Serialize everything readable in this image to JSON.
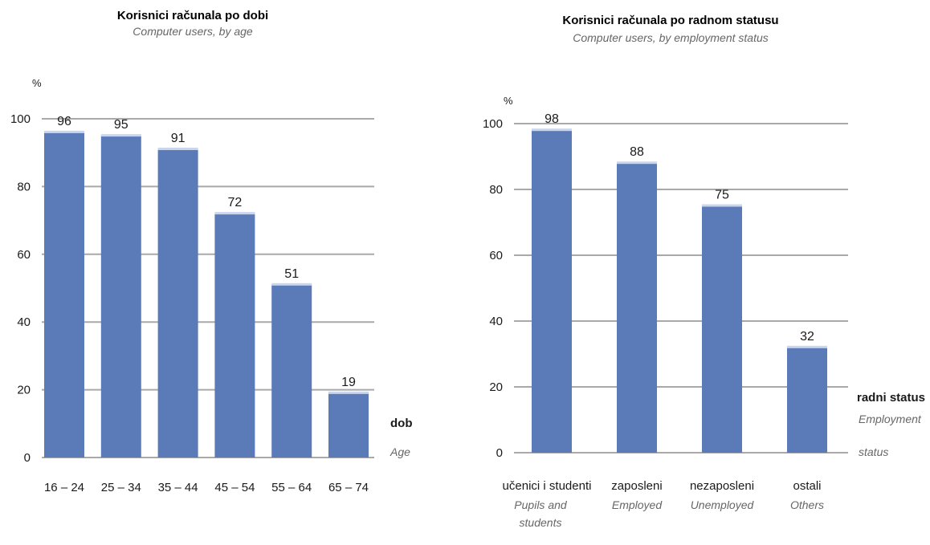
{
  "colors": {
    "bar": "#5b7bb8",
    "grid": "#a9a9a9",
    "bar_highlight": "#c9d6ee"
  },
  "chart_data": [
    {
      "type": "bar",
      "title": "Korisnici računala po dobi",
      "subtitle": "Computer users, by age",
      "ylabel": "%",
      "xlabel": "dob",
      "xlabel_en": "Age",
      "ylim": [
        0,
        100
      ],
      "yticks": [
        "0",
        "20",
        "40",
        "60",
        "80",
        "100"
      ],
      "categories": [
        "16 – 24",
        "25 – 34",
        "35 – 44",
        "45 – 54",
        "55 – 64",
        "65 – 74"
      ],
      "values": [
        96,
        95,
        91,
        72,
        51,
        19
      ],
      "grid": true
    },
    {
      "type": "bar",
      "title": "Korisnici računala po radnom statusu",
      "subtitle": "Computer users, by employment status",
      "ylabel": "%",
      "xlabel": "radni status",
      "xlabel_en": [
        "Employment",
        "status"
      ],
      "ylim": [
        0,
        100
      ],
      "yticks": [
        "0",
        "20",
        "40",
        "60",
        "80",
        "100"
      ],
      "categories": [
        "učenici i studenti",
        "zaposleni",
        "nezaposleni",
        "ostali"
      ],
      "categories_en": [
        [
          "Pupils and",
          "students"
        ],
        [
          "Employed"
        ],
        [
          "Unemployed"
        ],
        [
          "Others"
        ]
      ],
      "values": [
        98,
        88,
        75,
        32
      ],
      "grid": true
    }
  ]
}
